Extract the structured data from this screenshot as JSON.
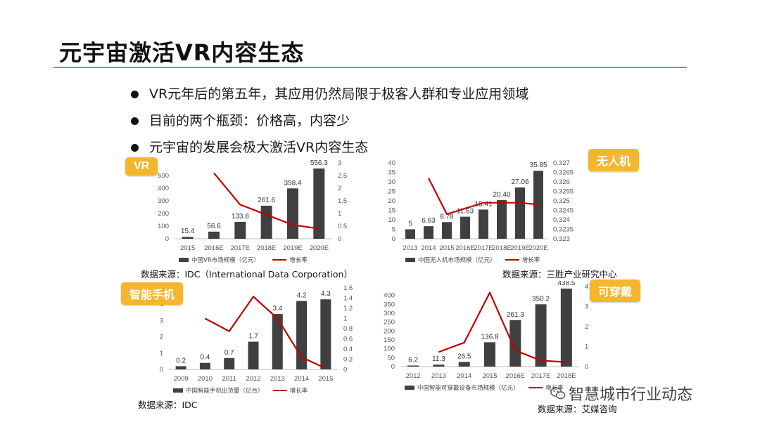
{
  "slide": {
    "title": "元宇宙激活VR内容生态",
    "bullets": [
      "VR元年后的第五年，其应用仍然局限于极客人群和专业应用领域",
      "目前的两个瓶颈：价格高，内容少",
      "元宇宙的发展会极大激活VR内容生态"
    ]
  },
  "panels": {
    "vr": {
      "tag": "VR",
      "source": "数据来源：IDC（International Data Corporation）"
    },
    "drone": {
      "tag": "无人机",
      "source": "数据来源：三胜产业研究中心"
    },
    "phone": {
      "tag": "智能手机",
      "source": "数据来源：IDC"
    },
    "wear": {
      "tag": "可穿戴",
      "source": "数据来源：艾媒咨询"
    }
  },
  "watermark": "智慧城市行业动态",
  "colors": {
    "bar": "#404040",
    "line": "#c00000",
    "tag": "#f5b62e",
    "rule": "#5b9bd5"
  },
  "chart_data": [
    {
      "id": "vr",
      "type": "bar",
      "categories": [
        "2015",
        "2016E",
        "2017E",
        "2018E",
        "2019E",
        "2020E"
      ],
      "series": [
        {
          "name": "中国VR市场规模（亿元）",
          "values": [
            15.4,
            56.6,
            133.8,
            261.6,
            398.4,
            556.3
          ],
          "axis": "left"
        },
        {
          "name": "增长率",
          "type": "line",
          "values": [
            null,
            2.6,
            1.35,
            0.95,
            0.55,
            0.4
          ],
          "axis": "right"
        }
      ],
      "data_labels": [
        "15.4",
        "56.6",
        "133.8",
        "261.6",
        "398.4",
        "556.3"
      ],
      "ylim": [
        0,
        600
      ],
      "yticks": [
        0,
        100,
        200,
        300,
        400,
        500
      ],
      "y2lim": [
        0,
        3
      ],
      "y2ticks": [
        "0",
        "0.5",
        "1",
        "1.5",
        "2",
        "2.5",
        "3"
      ]
    },
    {
      "id": "drone",
      "type": "bar",
      "categories": [
        "2013",
        "2014",
        "2015",
        "2016E",
        "2017E",
        "2018E",
        "2019E",
        "2020E"
      ],
      "series": [
        {
          "name": "中国无人机市场规模（亿元）",
          "values": [
            5,
            6.63,
            8.78,
            11.63,
            15.41,
            20.4,
            27.06,
            35.85
          ],
          "axis": "left"
        },
        {
          "name": "增长率",
          "type": "line",
          "values": [
            null,
            0.3262,
            0.3243,
            0.3246,
            0.3249,
            0.3249,
            0.3249,
            0.3248
          ],
          "axis": "right"
        }
      ],
      "data_labels": [
        "5",
        "6.63",
        "8.78",
        "11.63",
        "15.41",
        "20.40",
        "27.06",
        "35.85"
      ],
      "ylim": [
        0,
        40
      ],
      "yticks": [
        0,
        5,
        10,
        15,
        20,
        25,
        30,
        35,
        40
      ],
      "y2lim": [
        0.323,
        0.327
      ],
      "y2ticks": [
        "0.323",
        "0.3235",
        "0.324",
        "0.3245",
        "0.325",
        "0.3255",
        "0.326",
        "0.3265",
        "0.327"
      ]
    },
    {
      "id": "phone",
      "type": "bar",
      "categories": [
        "2009",
        "2010",
        "2011",
        "2012",
        "2013",
        "2014",
        "2015"
      ],
      "series": [
        {
          "name": "中国智能手机出货量（亿台）",
          "values": [
            0.2,
            0.4,
            0.7,
            1.7,
            3.4,
            4.2,
            4.3
          ],
          "axis": "left"
        },
        {
          "name": "增长率",
          "type": "line",
          "values": [
            null,
            1.0,
            0.75,
            1.43,
            1.0,
            0.24,
            0.02
          ],
          "axis": "right"
        }
      ],
      "data_labels": [
        "0.2",
        "0.4",
        "0.7",
        "1.7",
        "3.4",
        "4.2",
        "4.3"
      ],
      "ylim": [
        0,
        5
      ],
      "yticks": [
        0,
        1,
        2,
        3,
        4
      ],
      "y2lim": [
        0,
        1.6
      ],
      "y2ticks": [
        "0",
        "0.2",
        "0.4",
        "0.6",
        "0.8",
        "1",
        "1.2",
        "1.4",
        "1.6"
      ]
    },
    {
      "id": "wear",
      "type": "bar",
      "categories": [
        "2012",
        "2013",
        "2014",
        "2015",
        "2016E",
        "2017E",
        "2018E"
      ],
      "series": [
        {
          "name": "中国智能可穿戴设备市场规模（亿元）",
          "values": [
            6.2,
            11.3,
            26.5,
            136.8,
            261.3,
            350.2,
            438.5
          ],
          "axis": "left"
        },
        {
          "name": "增长率",
          "type": "line",
          "values": [
            null,
            0.82,
            1.35,
            4.16,
            0.91,
            0.34,
            0.25
          ],
          "axis": "right"
        }
      ],
      "data_labels": [
        "6.2",
        "11.3",
        "26.5",
        "136.8",
        "261.3",
        "350.2",
        "438.5"
      ],
      "ylim": [
        0,
        450
      ],
      "yticks": [
        0,
        50,
        100,
        150,
        200,
        250,
        300,
        350,
        400
      ],
      "y2lim": [
        0,
        4.5
      ],
      "y2ticks": [
        "0",
        "1",
        "2",
        "3",
        "4"
      ]
    }
  ]
}
